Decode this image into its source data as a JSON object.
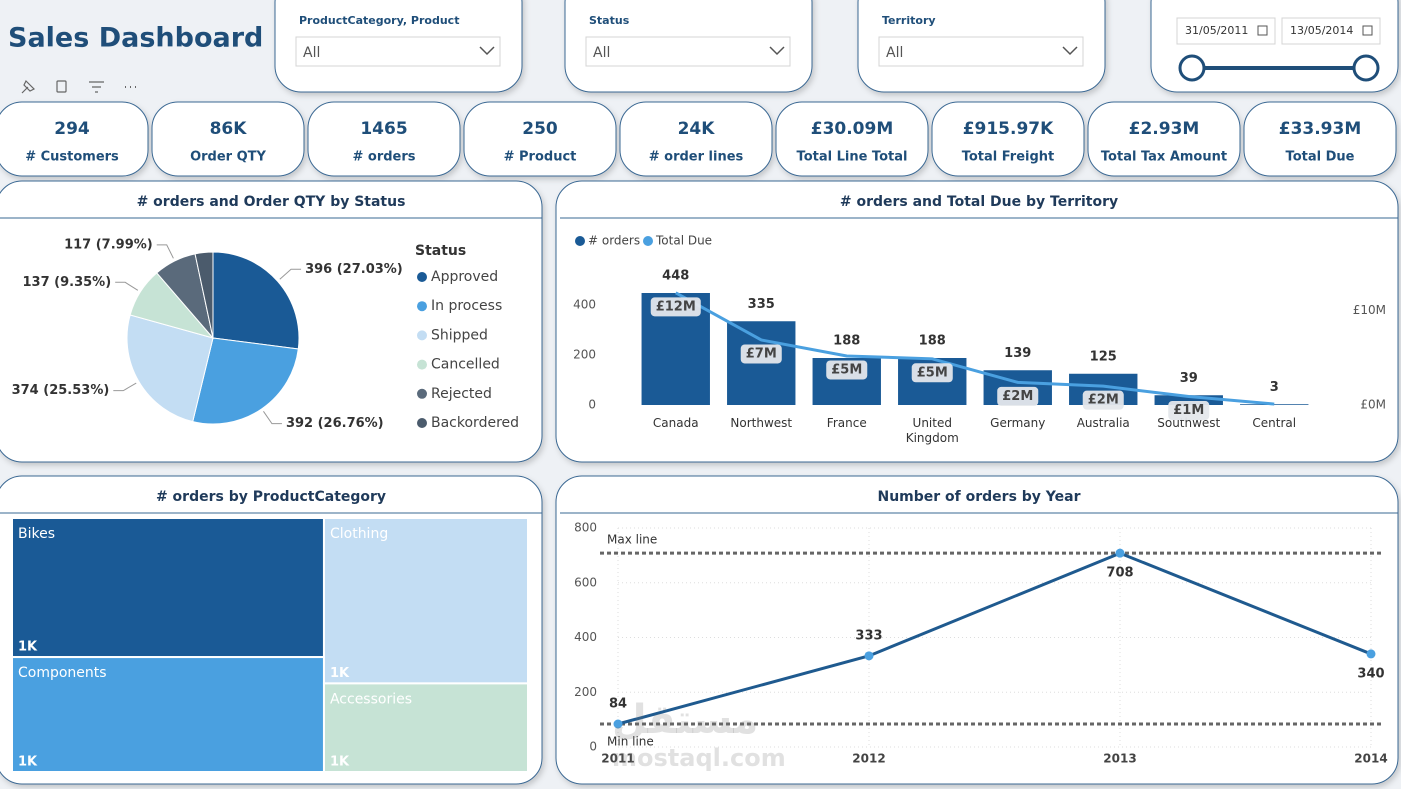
{
  "header": {
    "title": "Sales Dashboard"
  },
  "filters": [
    {
      "label": "ProductCategory, Product",
      "value": "All"
    },
    {
      "label": "Status",
      "value": "All"
    },
    {
      "label": "Territory",
      "value": "All"
    }
  ],
  "date_range": {
    "start": "31/05/2011",
    "end": "13/05/2014"
  },
  "kpis": [
    {
      "value": "294",
      "label": "# Customers"
    },
    {
      "value": "86K",
      "label": "Order QTY"
    },
    {
      "value": "1465",
      "label": "# orders"
    },
    {
      "value": "250",
      "label": "# Product"
    },
    {
      "value": "24K",
      "label": "# order lines"
    },
    {
      "value": "£30.09M",
      "label": "Total Line Total"
    },
    {
      "value": "£915.97K",
      "label": "Total Freight"
    },
    {
      "value": "£2.93M",
      "label": "Total Tax Amount"
    },
    {
      "value": "£33.93M",
      "label": "Total Due"
    }
  ],
  "chart_data": [
    {
      "type": "pie",
      "title": "# orders and Order QTY by Status",
      "legend_title": "Status",
      "categories": [
        "Approved",
        "In process",
        "Shipped",
        "Cancelled",
        "Rejected",
        "Backordered"
      ],
      "values": [
        396,
        392,
        374,
        137,
        117,
        49
      ],
      "value_labels": [
        "396 (27.03%)",
        "392 (26.76%)",
        "374 (25.53%)",
        "137 (9.35%)",
        "117 (7.99%)",
        null
      ],
      "colors": [
        "#1a5a96",
        "#4aa0e0",
        "#c3ddf3",
        "#c6e3d5",
        "#5a6a7b",
        "#4b5b6c"
      ]
    },
    {
      "type": "bar",
      "title": "# orders and Total Due by Territory",
      "categories": [
        "Canada",
        "Northwest",
        "France",
        "United Kingdom",
        "Germany",
        "Australia",
        "Southwest",
        "Central"
      ],
      "series": [
        {
          "name": "# orders",
          "color": "#1a5a96",
          "values": [
            448,
            335,
            188,
            188,
            139,
            125,
            39,
            3
          ]
        },
        {
          "name": "Total Due",
          "color": "#4aa0e0",
          "axis": "y2",
          "kind": "line",
          "values": [
            11.9,
            6.9,
            5.2,
            4.9,
            2.4,
            2.0,
            0.9,
            0.1
          ],
          "value_labels": [
            "£12M",
            "£7M",
            "£5M",
            "£5M",
            "£2M",
            "£2M",
            "£1M",
            null
          ]
        }
      ],
      "ylim": [
        0,
        460
      ],
      "yticks": [
        0,
        200,
        400
      ],
      "y2lim": [
        0,
        12.2
      ],
      "y2ticks": [
        {
          "value": 0,
          "label": "£0M"
        },
        {
          "value": 10,
          "label": "£10M"
        }
      ]
    },
    {
      "type": "treemap",
      "title": "# orders by ProductCategory",
      "categories": [
        "Bikes",
        "Components",
        "Clothing",
        "Accessories"
      ],
      "values": [
        1440,
        1190,
        1120,
        600
      ],
      "value_labels": [
        "1K",
        "1K",
        "1K",
        "1K"
      ],
      "colors": [
        "#1a5a96",
        "#4aa0e0",
        "#c3ddf3",
        "#c6e3d5"
      ]
    },
    {
      "type": "line",
      "title": "Number of orders by Year",
      "x": [
        2011,
        2012,
        2013,
        2014
      ],
      "values": [
        84,
        333,
        708,
        340
      ],
      "color": "#1f5a8f",
      "marker_color": "#4aa0e0",
      "xlim": [
        2011,
        2014
      ],
      "xticks": [
        2011,
        2012,
        2013,
        2014
      ],
      "ylim": [
        0,
        800
      ],
      "yticks": [
        0,
        200,
        400,
        600,
        800
      ],
      "grid": true,
      "reference_lines": [
        {
          "label": "Max line",
          "value": 708
        },
        {
          "label": "Min line",
          "value": 84
        }
      ]
    }
  ],
  "watermark": {
    "arabic": "مستقل",
    "latin": "mostaql.com"
  }
}
